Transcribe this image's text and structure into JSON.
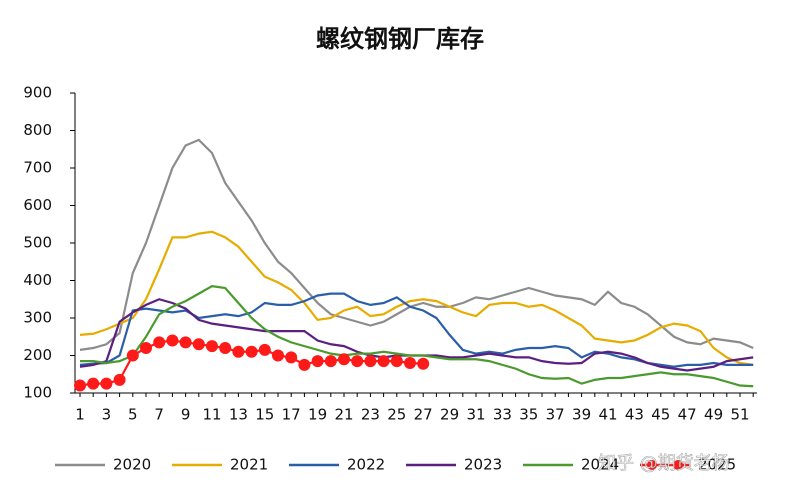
{
  "chart_data": {
    "type": "line",
    "title": "螺纹钢钢厂库存",
    "categories": [
      1,
      null,
      3,
      null,
      5,
      null,
      7,
      null,
      9,
      null,
      11,
      null,
      13,
      null,
      15,
      null,
      17,
      null,
      19,
      null,
      21,
      null,
      23,
      null,
      25,
      null,
      27,
      null,
      29,
      null,
      31,
      null,
      33,
      null,
      35,
      null,
      37,
      null,
      39,
      null,
      41,
      null,
      43,
      null,
      45,
      null,
      47,
      null,
      49,
      null,
      51,
      null
    ],
    "ylim": [
      100,
      900
    ],
    "yticks": [
      100,
      200,
      300,
      400,
      500,
      600,
      700,
      800,
      900
    ],
    "grid": false,
    "legend": "bottom",
    "watermark": "知乎 @期货老杨",
    "series": [
      {
        "name": "2020",
        "color": "#8c8c8c",
        "values": [
          215,
          220,
          230,
          260,
          420,
          500,
          600,
          700,
          760,
          775,
          740,
          660,
          610,
          560,
          500,
          450,
          420,
          380,
          340,
          310,
          300,
          290,
          280,
          290,
          310,
          330,
          340,
          330,
          330,
          340,
          355,
          350,
          360,
          370,
          380,
          370,
          360,
          355,
          350,
          335,
          370,
          340,
          330,
          310,
          280,
          250,
          235,
          230,
          245,
          240,
          235,
          220
        ]
      },
      {
        "name": "2021",
        "color": "#e6ac00",
        "values": [
          255,
          258,
          270,
          285,
          300,
          350,
          430,
          515,
          515,
          525,
          530,
          515,
          490,
          450,
          410,
          395,
          375,
          340,
          295,
          300,
          320,
          330,
          305,
          310,
          330,
          345,
          350,
          345,
          330,
          315,
          305,
          335,
          340,
          340,
          330,
          335,
          320,
          300,
          280,
          245,
          240,
          235,
          240,
          255,
          275,
          285,
          280,
          265,
          220,
          195,
          180,
          175
        ]
      },
      {
        "name": "2022",
        "color": "#2a5fa8",
        "values": [
          175,
          178,
          180,
          200,
          320,
          325,
          320,
          315,
          320,
          300,
          305,
          310,
          305,
          315,
          340,
          335,
          335,
          345,
          360,
          365,
          365,
          345,
          335,
          340,
          355,
          330,
          320,
          300,
          255,
          215,
          205,
          210,
          205,
          215,
          220,
          220,
          225,
          220,
          195,
          210,
          205,
          195,
          190,
          180,
          175,
          170,
          175,
          175,
          180,
          175,
          175,
          175
        ]
      },
      {
        "name": "2023",
        "color": "#5b1f82",
        "values": [
          170,
          175,
          185,
          290,
          315,
          335,
          350,
          340,
          325,
          295,
          285,
          280,
          275,
          270,
          265,
          265,
          265,
          265,
          240,
          230,
          225,
          210,
          200,
          195,
          200,
          200,
          200,
          200,
          195,
          195,
          200,
          205,
          200,
          195,
          195,
          185,
          180,
          178,
          180,
          205,
          210,
          205,
          195,
          180,
          170,
          165,
          160,
          165,
          170,
          185,
          190,
          195
        ]
      },
      {
        "name": "2024",
        "color": "#4a9a2e",
        "values": [
          185,
          185,
          180,
          185,
          200,
          250,
          310,
          330,
          345,
          365,
          385,
          380,
          340,
          300,
          270,
          250,
          235,
          225,
          215,
          205,
          200,
          205,
          205,
          210,
          205,
          200,
          200,
          195,
          190,
          190,
          190,
          185,
          175,
          165,
          150,
          140,
          138,
          140,
          125,
          135,
          140,
          140,
          145,
          150,
          155,
          150,
          150,
          145,
          140,
          130,
          120,
          118
        ]
      },
      {
        "name": "2025",
        "color": "#ff1a1a",
        "markers": true,
        "values": [
          120,
          125,
          125,
          135,
          200,
          220,
          235,
          240,
          235,
          230,
          225,
          220,
          210,
          210,
          215,
          200,
          195,
          175,
          185,
          185,
          190,
          185,
          185,
          185,
          185,
          180,
          178,
          null,
          null,
          null,
          null,
          null,
          null,
          null,
          null,
          null,
          null,
          null,
          null,
          null,
          null,
          null,
          null,
          null,
          null,
          null,
          null,
          null,
          null,
          null,
          null,
          null
        ]
      }
    ]
  }
}
